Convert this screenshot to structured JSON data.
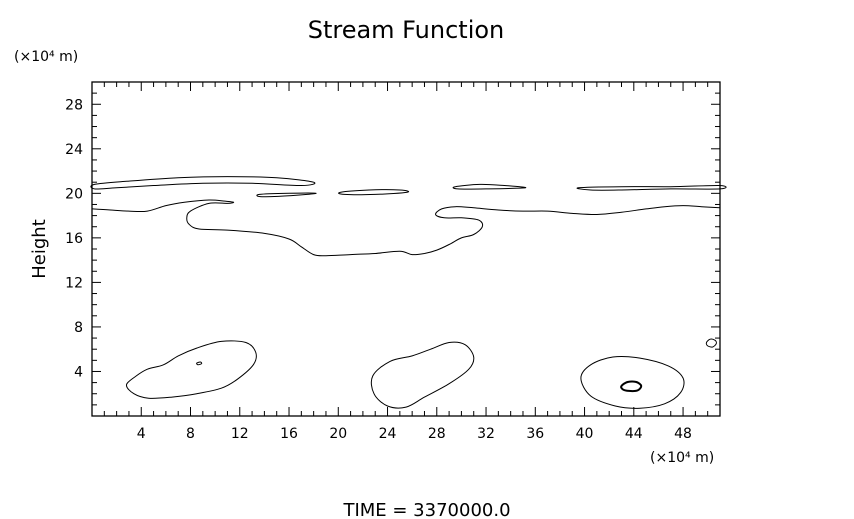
{
  "chart_data": {
    "type": "contour",
    "title": "Stream Function",
    "ylabel": "Height",
    "y_unit": "(×10⁴ m)",
    "x_unit": "(×10⁴ m)",
    "footer": "TIME  =  3370000.0",
    "xlim": [
      0,
      51
    ],
    "ylim": [
      0,
      30
    ],
    "x_major_ticks": [
      4,
      8,
      12,
      16,
      20,
      24,
      28,
      32,
      36,
      40,
      44,
      48
    ],
    "y_major_ticks": [
      4,
      8,
      12,
      16,
      20,
      24,
      28
    ],
    "x_minor_step": 1,
    "y_minor_step": 1,
    "grid": false,
    "contours": [
      {
        "name": "upper-band-left",
        "closed": true,
        "points": [
          [
            0.2,
            20.8
          ],
          [
            3,
            21.1
          ],
          [
            7,
            21.4
          ],
          [
            11,
            21.5
          ],
          [
            15,
            21.4
          ],
          [
            18,
            21.0
          ],
          [
            17,
            20.7
          ],
          [
            13,
            20.9
          ],
          [
            9,
            20.9
          ],
          [
            5,
            20.7
          ],
          [
            2,
            20.5
          ],
          [
            0.2,
            20.4
          ]
        ]
      },
      {
        "name": "upper-band-segment-2",
        "closed": true,
        "points": [
          [
            13.6,
            19.9
          ],
          [
            16,
            20.0
          ],
          [
            18.2,
            20.0
          ],
          [
            16.2,
            19.8
          ],
          [
            13.8,
            19.7
          ]
        ]
      },
      {
        "name": "upper-band-segment-3",
        "closed": true,
        "points": [
          [
            20.2,
            20.1
          ],
          [
            22.5,
            20.3
          ],
          [
            25,
            20.3
          ],
          [
            25.6,
            20.1
          ],
          [
            23,
            19.9
          ],
          [
            20.5,
            19.9
          ]
        ]
      },
      {
        "name": "upper-band-segment-4",
        "closed": true,
        "points": [
          [
            29.5,
            20.6
          ],
          [
            31.5,
            20.8
          ],
          [
            33.5,
            20.7
          ],
          [
            35.2,
            20.5
          ],
          [
            32,
            20.4
          ],
          [
            29.7,
            20.4
          ]
        ]
      },
      {
        "name": "upper-band-segment-5",
        "closed": true,
        "points": [
          [
            39.5,
            20.5
          ],
          [
            43,
            20.6
          ],
          [
            47,
            20.6
          ],
          [
            51,
            20.7
          ],
          [
            51,
            20.4
          ],
          [
            47,
            20.4
          ],
          [
            43,
            20.3
          ],
          [
            40.5,
            20.3
          ]
        ]
      },
      {
        "name": "mid-boundary",
        "closed": false,
        "points": [
          [
            0,
            18.6
          ],
          [
            1.5,
            18.5
          ],
          [
            3,
            18.4
          ],
          [
            4.5,
            18.4
          ],
          [
            6,
            18.9
          ],
          [
            7.5,
            19.2
          ],
          [
            9.5,
            19.4
          ],
          [
            10.8,
            19.3
          ],
          [
            11.5,
            19.2
          ],
          [
            11,
            19.1
          ],
          [
            9.5,
            19.1
          ],
          [
            8,
            18.4
          ],
          [
            7.7,
            17.8
          ],
          [
            7.9,
            17.2
          ],
          [
            8.7,
            16.8
          ],
          [
            11,
            16.7
          ],
          [
            14,
            16.4
          ],
          [
            16,
            15.9
          ],
          [
            17,
            15.2
          ],
          [
            18,
            14.5
          ],
          [
            19,
            14.4
          ],
          [
            21,
            14.5
          ],
          [
            23,
            14.6
          ],
          [
            25,
            14.8
          ],
          [
            26,
            14.5
          ],
          [
            27,
            14.6
          ],
          [
            28,
            14.9
          ],
          [
            29,
            15.4
          ],
          [
            30,
            16.0
          ],
          [
            31,
            16.3
          ],
          [
            31.7,
            17.0
          ],
          [
            31.4,
            17.6
          ],
          [
            30,
            17.8
          ],
          [
            28.6,
            17.8
          ],
          [
            27.9,
            18.1
          ],
          [
            28.4,
            18.6
          ],
          [
            29.5,
            18.8
          ],
          [
            31,
            18.7
          ],
          [
            33,
            18.5
          ],
          [
            35,
            18.4
          ],
          [
            37,
            18.4
          ],
          [
            39,
            18.2
          ],
          [
            41,
            18.1
          ],
          [
            43,
            18.3
          ],
          [
            45,
            18.6
          ],
          [
            46.5,
            18.8
          ],
          [
            48,
            18.9
          ],
          [
            49.5,
            18.8
          ],
          [
            51,
            18.7
          ]
        ]
      },
      {
        "name": "low-left",
        "closed": true,
        "points": [
          [
            2.8,
            2.8
          ],
          [
            3.6,
            3.6
          ],
          [
            4.5,
            4.2
          ],
          [
            5.8,
            4.6
          ],
          [
            7,
            5.4
          ],
          [
            8.5,
            6.1
          ],
          [
            10.5,
            6.7
          ],
          [
            12.5,
            6.6
          ],
          [
            13.3,
            5.7
          ],
          [
            13.1,
            4.6
          ],
          [
            11.8,
            3.3
          ],
          [
            10.5,
            2.5
          ],
          [
            8.5,
            2.0
          ],
          [
            6.5,
            1.7
          ],
          [
            4.6,
            1.6
          ],
          [
            3.4,
            2.0
          ]
        ]
      },
      {
        "name": "low-middle",
        "closed": true,
        "points": [
          [
            22.8,
            3.6
          ],
          [
            24.2,
            4.9
          ],
          [
            26,
            5.4
          ],
          [
            27.5,
            6.0
          ],
          [
            29,
            6.6
          ],
          [
            30.3,
            6.4
          ],
          [
            31,
            5.3
          ],
          [
            30.6,
            4.2
          ],
          [
            29,
            2.9
          ],
          [
            27,
            1.7
          ],
          [
            25.5,
            0.8
          ],
          [
            24,
            0.9
          ],
          [
            22.9,
            2.0
          ]
        ]
      },
      {
        "name": "low-right",
        "closed": true,
        "points": [
          [
            39.7,
            3.4
          ],
          [
            40.5,
            4.6
          ],
          [
            42.3,
            5.3
          ],
          [
            44.5,
            5.2
          ],
          [
            46.8,
            4.5
          ],
          [
            48,
            3.4
          ],
          [
            47.8,
            2.1
          ],
          [
            46.5,
            1.1
          ],
          [
            44.5,
            0.7
          ],
          [
            42.5,
            0.9
          ],
          [
            40.5,
            1.8
          ]
        ]
      },
      {
        "name": "low-right-inner",
        "closed": true,
        "points": [
          [
            43,
            2.7
          ],
          [
            43.5,
            3.05
          ],
          [
            44.2,
            3.05
          ],
          [
            44.6,
            2.7
          ],
          [
            44.3,
            2.3
          ],
          [
            43.6,
            2.25
          ],
          [
            43.1,
            2.4
          ]
        ]
      },
      {
        "name": "small-circle-right",
        "closed": true,
        "points": [
          [
            49.9,
            6.6
          ],
          [
            50.2,
            6.9
          ],
          [
            50.6,
            6.8
          ],
          [
            50.7,
            6.5
          ],
          [
            50.4,
            6.2
          ],
          [
            50.0,
            6.3
          ]
        ]
      },
      {
        "name": "tiny-point-left",
        "closed": true,
        "points": [
          [
            8.5,
            4.75
          ],
          [
            8.8,
            4.85
          ],
          [
            8.9,
            4.7
          ],
          [
            8.6,
            4.6
          ]
        ]
      }
    ]
  }
}
